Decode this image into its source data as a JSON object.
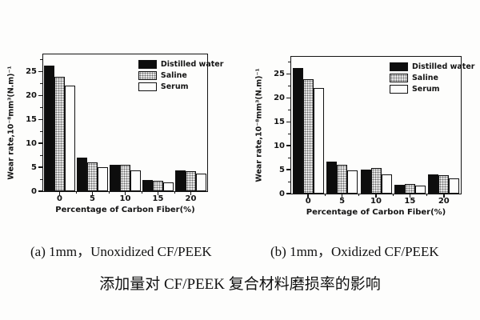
{
  "figure": {
    "caption_a": "(a) 1mm，Unoxidized CF/PEEK",
    "caption_b": "(b) 1mm，Oxidized CF/PEEK",
    "title": "添加量对 CF/PEEK 复合材料磨损率的影响"
  },
  "colors": {
    "bar_black": "#0d0d0d",
    "saline_fill": "#e6e6e6",
    "serum_fill": "#fdfdfc",
    "frame": "#141414",
    "background": "#fdfdfc"
  },
  "chart_data": [
    {
      "type": "bar",
      "subtitle": "(a) 1mm, Unoxidized CF/PEEK",
      "categories": [
        "0",
        "5",
        "10",
        "15",
        "20"
      ],
      "series": [
        {
          "name": "Distilled water",
          "style": "distilled",
          "values": [
            26.2,
            7.0,
            5.6,
            2.3,
            4.4
          ]
        },
        {
          "name": "Saline",
          "style": "saline",
          "values": [
            23.9,
            6.1,
            5.6,
            2.1,
            4.1
          ]
        },
        {
          "name": "Serum",
          "style": "serum",
          "values": [
            22.0,
            5.0,
            4.4,
            1.8,
            3.7
          ]
        }
      ],
      "xlabel": "Percentage of Carbon Fiber(%)",
      "ylabel": "Wear rate,10⁻⁸mm³(N.m)⁻¹",
      "ylim": [
        0,
        28.6
      ],
      "yticks": [
        0,
        5,
        10,
        15,
        20,
        25
      ],
      "legend_position": "top-right",
      "grid": false
    },
    {
      "type": "bar",
      "subtitle": "(b) 1mm, Oxidized CF/PEEK",
      "categories": [
        "0",
        "5",
        "10",
        "15",
        "20"
      ],
      "series": [
        {
          "name": "Distilled water",
          "style": "distilled",
          "values": [
            26.3,
            6.7,
            5.0,
            1.9,
            4.0
          ]
        },
        {
          "name": "Saline",
          "style": "saline",
          "values": [
            24.0,
            6.1,
            5.4,
            2.0,
            3.8
          ]
        },
        {
          "name": "Serum",
          "style": "serum",
          "values": [
            22.1,
            4.8,
            4.0,
            1.7,
            3.2
          ]
        }
      ],
      "xlabel": "Percentage of Carbon Fiber(%)",
      "ylabel": "Wear rate,10⁻⁸mm³(N.m)⁻¹",
      "ylim": [
        0,
        28.6
      ],
      "yticks": [
        0,
        5,
        10,
        15,
        20,
        25
      ],
      "legend_position": "top-right",
      "grid": false
    }
  ]
}
